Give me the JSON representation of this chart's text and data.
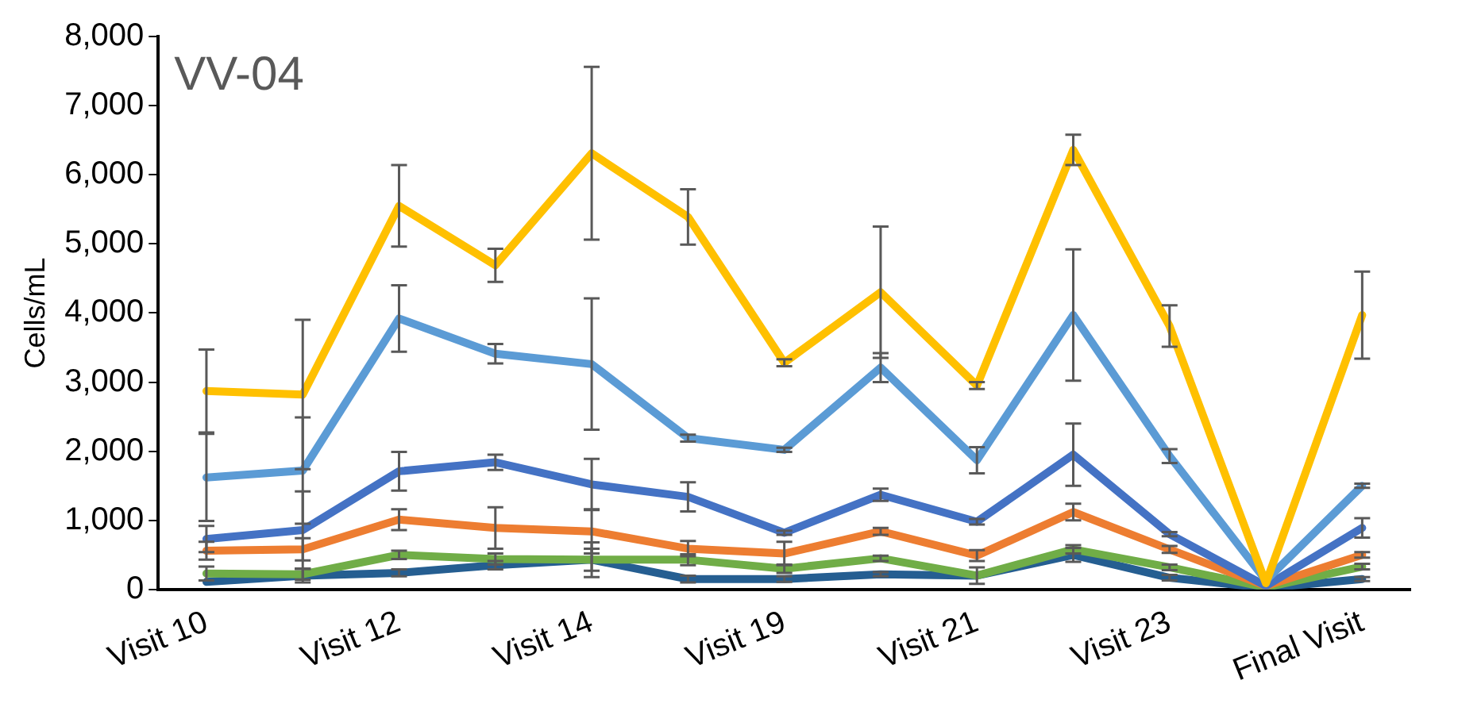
{
  "chart_data": {
    "type": "line",
    "ylabel": "Cells/mL",
    "annotations": [
      "VV-04"
    ],
    "categories": [
      "Visit 10",
      null,
      "Visit 12",
      null,
      "Visit 14",
      null,
      "Visit 19",
      null,
      "Visit 21",
      null,
      "Visit 23",
      null,
      "Final Visit"
    ],
    "ylim": [
      0,
      8000
    ],
    "yticks": [
      0,
      {
        "value": 1000,
        "label": "1,000"
      },
      {
        "value": 2000,
        "label": "2,000"
      },
      {
        "value": 3000,
        "label": "3,000"
      },
      {
        "value": 4000,
        "label": "4,000"
      },
      {
        "value": 5000,
        "label": "5,000"
      },
      {
        "value": 6000,
        "label": "6,000"
      },
      {
        "value": 7000,
        "label": "7,000"
      },
      {
        "value": 8000,
        "label": "8,000"
      }
    ],
    "grid": false,
    "legend": false,
    "line_style": "solid",
    "series": [
      {
        "color": "#ffc000",
        "values": [
          2870,
          2820,
          5550,
          4690,
          6310,
          5390,
          3280,
          4300,
          2950,
          6360,
          3810,
          90,
          3970
        ],
        "errors": [
          600,
          1080,
          590,
          240,
          1250,
          400,
          50,
          950,
          50,
          220,
          300,
          null,
          630
        ]
      },
      {
        "color": "#5b9bd5",
        "values": [
          1620,
          1720,
          3920,
          3410,
          3260,
          2190,
          2020,
          3210,
          1870,
          3970,
          1930,
          130,
          1500
        ],
        "errors": [
          630,
          770,
          480,
          140,
          950,
          50,
          30,
          210,
          190,
          950,
          100,
          null,
          30
        ]
      },
      {
        "color": "#4472c4",
        "values": [
          730,
          860,
          1710,
          1840,
          1520,
          1340,
          820,
          1370,
          980,
          1950,
          800,
          50,
          890
        ],
        "errors": [
          190,
          560,
          280,
          110,
          370,
          210,
          30,
          90,
          40,
          450,
          30,
          null,
          140
        ]
      },
      {
        "color": "#ed7d31",
        "values": [
          560,
          580,
          1010,
          890,
          840,
          590,
          520,
          840,
          490,
          1120,
          580,
          50,
          500
        ],
        "errors": [
          130,
          160,
          150,
          300,
          320,
          110,
          170,
          50,
          80,
          120,
          50,
          null,
          40
        ]
      },
      {
        "color": "#70ad47",
        "values": [
          230,
          220,
          500,
          440,
          430,
          430,
          300,
          450,
          200,
          580,
          320,
          30,
          330
        ],
        "errors": [
          100,
          80,
          60,
          80,
          160,
          80,
          60,
          40,
          120,
          60,
          40,
          null,
          40
        ]
      },
      {
        "color": "#255e91",
        "values": [
          110,
          200,
          240,
          350,
          430,
          150,
          150,
          220,
          200,
          500,
          170,
          20,
          150
        ],
        "errors": [
          null,
          100,
          50,
          60,
          250,
          50,
          40,
          30,
          null,
          100,
          40,
          null,
          30
        ]
      }
    ]
  }
}
